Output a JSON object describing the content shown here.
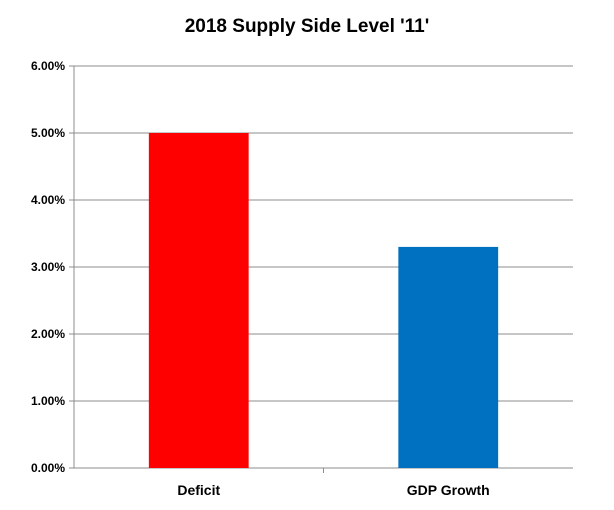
{
  "chart_data": {
    "type": "bar",
    "title": "2018 Supply Side Level '11'",
    "categories": [
      "Deficit",
      "GDP Growth"
    ],
    "values": [
      5.0,
      3.3
    ],
    "colors": [
      "#ff0000",
      "#0070c0"
    ],
    "unit": "%",
    "ylim": [
      0,
      6
    ],
    "yticks": [
      "0.00%",
      "1.00%",
      "2.00%",
      "3.00%",
      "4.00%",
      "5.00%",
      "6.00%"
    ],
    "xlabel": "",
    "ylabel": "",
    "grid": true,
    "legend": "none"
  }
}
